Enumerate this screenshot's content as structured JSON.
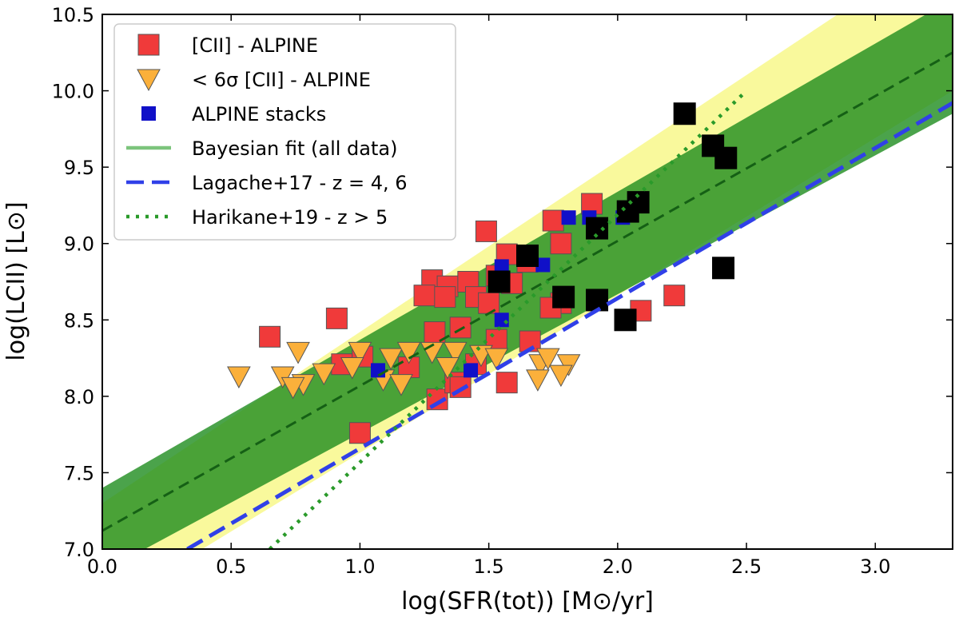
{
  "chart_data": {
    "type": "scatter",
    "xlabel": "log(SFR(tot)) [M⊙/yr]",
    "ylabel": "log(LCII) [L⊙]",
    "xlim": [
      0,
      3.3
    ],
    "ylim": [
      7.0,
      10.5
    ],
    "xticks": [
      {
        "value": 0,
        "label": "0.0"
      },
      0.5,
      {
        "value": 1,
        "label": "1.0"
      },
      1.5,
      {
        "value": 2,
        "label": "2.0"
      },
      2.5,
      {
        "value": 3,
        "label": "3.0"
      }
    ],
    "yticks": [
      {
        "value": 7,
        "label": "7.0"
      },
      7.5,
      {
        "value": 8,
        "label": "8.0"
      },
      8.5,
      {
        "value": 9,
        "label": "9.0"
      },
      9.5,
      {
        "value": 10,
        "label": "10.0"
      },
      10.5
    ],
    "legend": "upper left",
    "bands": [
      {
        "color": "#f5f55a",
        "x": [
          0,
          3.3
        ],
        "lower": [
          6.6,
          10.0
        ],
        "upper": [
          7.3,
          11.0
        ]
      },
      {
        "color": "#1e8c1e",
        "x": [
          0,
          3.3
        ],
        "lower": [
          6.85,
          9.85
        ],
        "upper": [
          7.4,
          10.6
        ]
      }
    ],
    "series": [
      {
        "name": "[CII] - ALPINE",
        "type": "scatter",
        "marker": "square",
        "color": "#f03a3a",
        "x": [
          0.65,
          0.91,
          1.0,
          0.93,
          1.01,
          1.49,
          1.75,
          1.9,
          1.78,
          1.57,
          1.65,
          1.28,
          1.34,
          1.42,
          1.53,
          1.25,
          1.33,
          1.45,
          1.5,
          1.59,
          1.78,
          1.74,
          2.09,
          2.22,
          1.29,
          1.39,
          1.53,
          1.66,
          1.3,
          1.37,
          1.39,
          1.57,
          1.19,
          1.45
        ],
        "values": [
          8.39,
          8.51,
          7.76,
          8.21,
          8.26,
          9.08,
          9.15,
          9.26,
          9.0,
          8.93,
          8.88,
          8.76,
          8.72,
          8.75,
          8.79,
          8.66,
          8.65,
          8.65,
          8.61,
          8.74,
          8.61,
          8.58,
          8.56,
          8.66,
          8.42,
          8.45,
          8.37,
          8.36,
          7.98,
          8.09,
          8.06,
          8.09,
          8.19,
          8.21
        ]
      },
      {
        "name": "< 6σ [CII] - ALPINE",
        "type": "scatter",
        "marker": "triangle-down",
        "color": "#fbb03b",
        "x": [
          0.53,
          0.76,
          0.7,
          0.78,
          0.86,
          0.74,
          1.0,
          0.97,
          1.12,
          1.19,
          1.28,
          1.37,
          1.47,
          1.53,
          1.7,
          1.73,
          1.81,
          1.78,
          1.69,
          1.09,
          1.16,
          1.34
        ],
        "values": [
          8.13,
          8.29,
          8.13,
          8.08,
          8.15,
          8.06,
          8.29,
          8.19,
          8.25,
          8.29,
          8.29,
          8.29,
          8.27,
          8.25,
          8.21,
          8.25,
          8.21,
          8.14,
          8.11,
          8.11,
          8.08,
          8.19
        ]
      },
      {
        "name": "ALPINE stacks",
        "type": "scatter",
        "marker": "square-small",
        "color": "#1010c8",
        "x": [
          1.07,
          1.43,
          1.55,
          1.55,
          1.71,
          1.81,
          2.02,
          1.89
        ],
        "values": [
          8.17,
          8.17,
          8.5,
          8.85,
          8.86,
          9.17,
          9.17,
          9.17
        ]
      },
      {
        "name": "Bayesian fit (all data)",
        "type": "line",
        "style": "solid",
        "color": "#7cc47c",
        "x": [
          0,
          3.3
        ],
        "values": [
          7.12,
          10.25
        ]
      },
      {
        "name": "Lagache+17 - z = 4, 6",
        "type": "line",
        "style": "dashed",
        "color": "#3040e8",
        "x": [
          0.33,
          3.3
        ],
        "values": [
          7.0,
          9.92
        ]
      },
      {
        "name": "Harikane+19 - z > 5",
        "type": "line",
        "style": "dotted",
        "color": "#2a9a2a",
        "x": [
          0.65,
          2.5
        ],
        "values": [
          7.0,
          10.0
        ]
      },
      {
        "type": "scatter",
        "marker": "square-large",
        "color": "#000000",
        "x": [
          2.26,
          2.37,
          2.42,
          2.41,
          2.03,
          1.92,
          1.79,
          1.92,
          2.08,
          2.04,
          1.54,
          1.65
        ],
        "values": [
          9.85,
          9.64,
          9.56,
          8.84,
          8.5,
          8.63,
          8.65,
          9.1,
          9.27,
          9.21,
          8.75,
          8.92
        ]
      }
    ]
  }
}
